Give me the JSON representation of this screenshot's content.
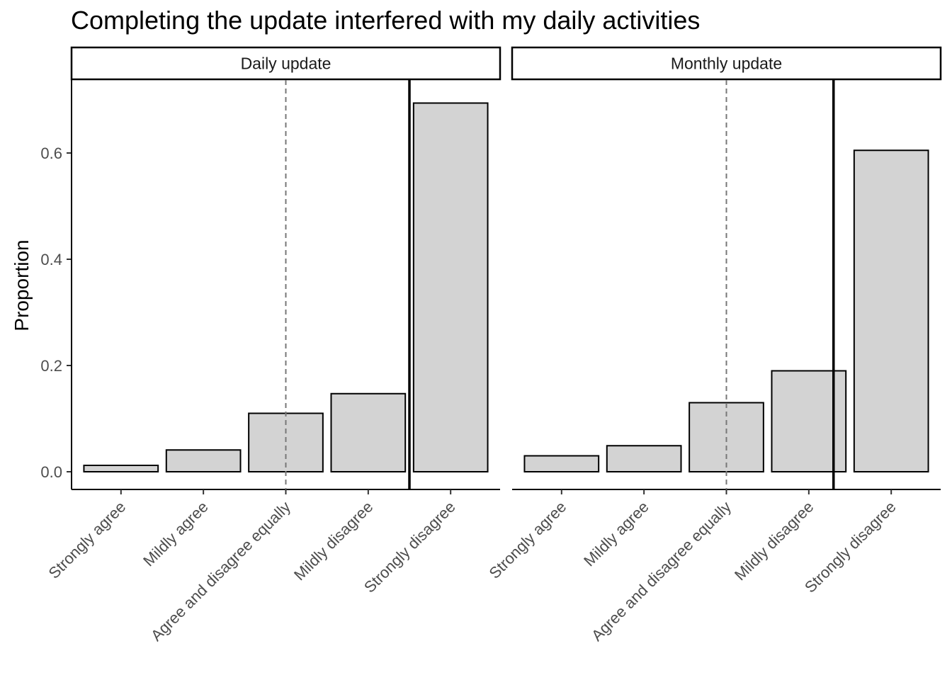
{
  "chart_data": {
    "type": "bar",
    "title": "Completing the update interfered with my daily activities",
    "ylabel": "Proportion",
    "xlabel": "",
    "categories": [
      "Strongly agree",
      "Mildly agree",
      "Agree and disagree equally",
      "Mildly disagree",
      "Strongly disagree"
    ],
    "ylim": [
      0,
      0.7
    ],
    "yticks": [
      0.0,
      0.2,
      0.4,
      0.6
    ],
    "ytick_labels": [
      "0.0",
      "0.2",
      "0.4",
      "0.6"
    ],
    "grid": false,
    "bar_color": "#d3d3d3",
    "panels": [
      {
        "name": "Daily update",
        "values": [
          0.012,
          0.041,
          0.11,
          0.147,
          0.694
        ],
        "reference_lines": [
          {
            "style": "dashed",
            "category_position": 3
          },
          {
            "style": "solid",
            "category_position": 4.5
          }
        ]
      },
      {
        "name": "Monthly update",
        "values": [
          0.03,
          0.049,
          0.13,
          0.19,
          0.605
        ],
        "reference_lines": [
          {
            "style": "dashed",
            "category_position": 3
          },
          {
            "style": "solid",
            "category_position": 4.3
          }
        ]
      }
    ]
  }
}
